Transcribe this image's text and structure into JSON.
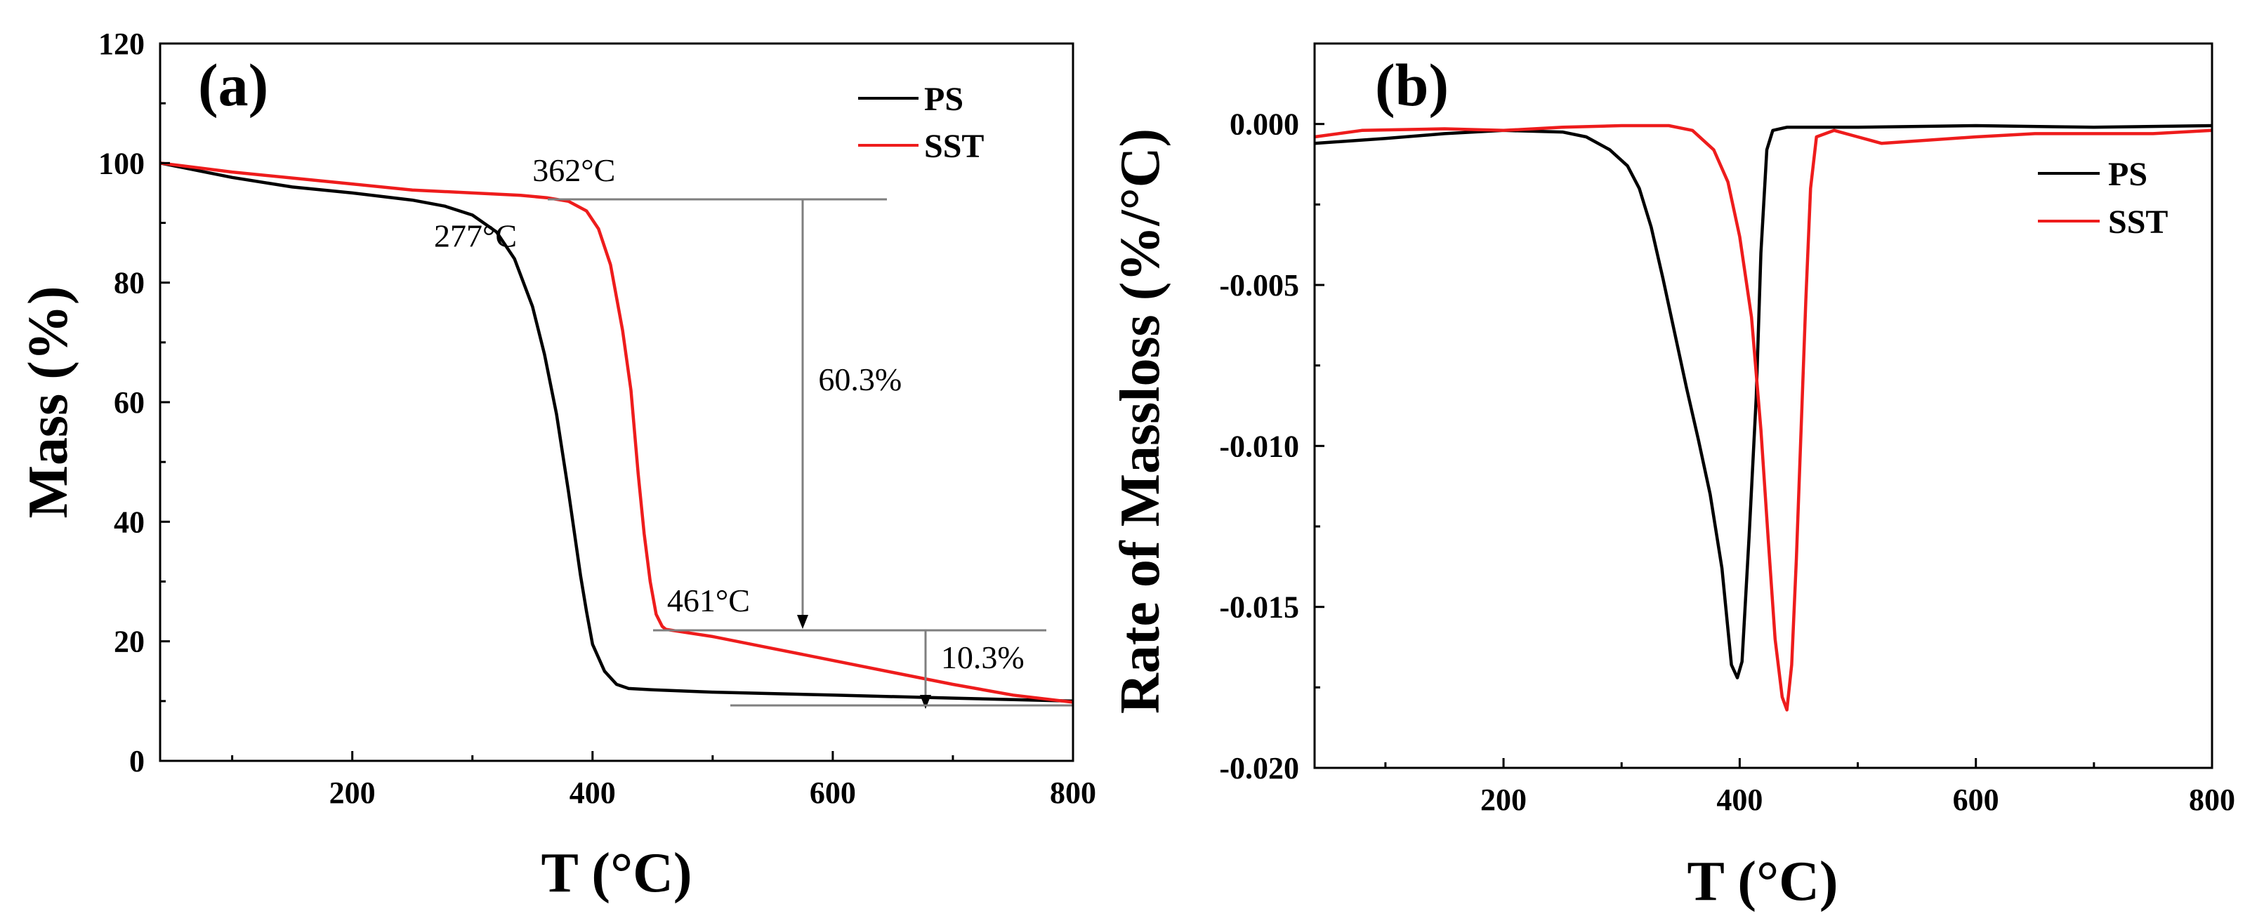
{
  "colors": {
    "PS": "#000000",
    "SST": "#ee1c1c",
    "annotation": "#7f7f7f"
  },
  "chart_data": [
    {
      "type": "line",
      "panel_label": "(a)",
      "xlabel": "T (°C)",
      "ylabel": "Mass (%)",
      "xlim": [
        40,
        800
      ],
      "ylim": [
        0,
        120
      ],
      "xticks": [
        200,
        400,
        600,
        800
      ],
      "yticks": [
        0,
        20,
        40,
        60,
        80,
        100,
        120
      ],
      "legend_position": "top-right",
      "series": [
        {
          "name": "PS",
          "color": "#000000",
          "points": [
            [
              40,
              100
            ],
            [
              100,
              97.6
            ],
            [
              150,
              96
            ],
            [
              200,
              95
            ],
            [
              250,
              93.8
            ],
            [
              277,
              92.8
            ],
            [
              300,
              91.3
            ],
            [
              320,
              88.5
            ],
            [
              335,
              84
            ],
            [
              350,
              76
            ],
            [
              360,
              68
            ],
            [
              370,
              58
            ],
            [
              380,
              45
            ],
            [
              390,
              31
            ],
            [
              395,
              25
            ],
            [
              400,
              19.5
            ],
            [
              410,
              15
            ],
            [
              420,
              12.8
            ],
            [
              430,
              12.1
            ],
            [
              450,
              11.9
            ],
            [
              500,
              11.5
            ],
            [
              600,
              11
            ],
            [
              700,
              10.5
            ],
            [
              800,
              10
            ]
          ]
        },
        {
          "name": "SST",
          "color": "#ee1c1c",
          "points": [
            [
              40,
              100
            ],
            [
              100,
              98.5
            ],
            [
              150,
              97.5
            ],
            [
              200,
              96.5
            ],
            [
              250,
              95.5
            ],
            [
              300,
              95
            ],
            [
              340,
              94.6
            ],
            [
              362,
              94.2
            ],
            [
              380,
              93.6
            ],
            [
              395,
              92
            ],
            [
              405,
              89
            ],
            [
              415,
              83
            ],
            [
              425,
              72
            ],
            [
              432,
              62
            ],
            [
              438,
              48
            ],
            [
              443,
              38
            ],
            [
              448,
              30
            ],
            [
              453,
              24.5
            ],
            [
              458,
              22.5
            ],
            [
              461,
              22
            ],
            [
              480,
              21.4
            ],
            [
              500,
              20.8
            ],
            [
              550,
              18.8
            ],
            [
              600,
              16.8
            ],
            [
              650,
              14.8
            ],
            [
              700,
              12.8
            ],
            [
              750,
              11
            ],
            [
              800,
              9.8
            ]
          ]
        }
      ],
      "annotations": [
        {
          "text": "362°C",
          "x": 350,
          "y": 97
        },
        {
          "text": "277°C",
          "x": 268,
          "y": 86
        },
        {
          "text": "461°C",
          "x": 462,
          "y": 25
        },
        {
          "text": "60.3%",
          "x": 588,
          "y": 62
        },
        {
          "text": "10.3%",
          "x": 690,
          "y": 15.5
        }
      ]
    },
    {
      "type": "line",
      "panel_label": "(b)",
      "xlabel": "T (°C)",
      "ylabel": "Rate of Massloss (%/°C)",
      "xlim": [
        40,
        800
      ],
      "ylim": [
        -0.02,
        0.0025
      ],
      "xticks": [
        200,
        400,
        600,
        800
      ],
      "yticks": [
        0.0,
        -0.005,
        -0.01,
        -0.015,
        -0.02
      ],
      "ytick_labels": [
        "0.000",
        "-0.005",
        "-0.010",
        "-0.015",
        "-0.020"
      ],
      "legend_position": "top-right",
      "series": [
        {
          "name": "PS",
          "color": "#000000",
          "points": [
            [
              40,
              -0.0006
            ],
            [
              100,
              -0.00045
            ],
            [
              150,
              -0.0003
            ],
            [
              200,
              -0.0002
            ],
            [
              250,
              -0.00025
            ],
            [
              270,
              -0.0004
            ],
            [
              290,
              -0.0008
            ],
            [
              305,
              -0.0013
            ],
            [
              315,
              -0.002
            ],
            [
              325,
              -0.0032
            ],
            [
              335,
              -0.0048
            ],
            [
              345,
              -0.0065
            ],
            [
              355,
              -0.0082
            ],
            [
              365,
              -0.0098
            ],
            [
              375,
              -0.0115
            ],
            [
              385,
              -0.0138
            ],
            [
              393,
              -0.0168
            ],
            [
              398,
              -0.0172
            ],
            [
              402,
              -0.0167
            ],
            [
              408,
              -0.0128
            ],
            [
              414,
              -0.0085
            ],
            [
              418,
              -0.004
            ],
            [
              423,
              -0.0008
            ],
            [
              428,
              -0.0002
            ],
            [
              440,
              -0.0001
            ],
            [
              500,
              -0.0001
            ],
            [
              600,
              -5e-05
            ],
            [
              700,
              -0.0001
            ],
            [
              800,
              -5e-05
            ]
          ]
        },
        {
          "name": "SST",
          "color": "#ee1c1c",
          "points": [
            [
              40,
              -0.0004
            ],
            [
              80,
              -0.0002
            ],
            [
              150,
              -0.00015
            ],
            [
              200,
              -0.0002
            ],
            [
              250,
              -0.0001
            ],
            [
              300,
              -5e-05
            ],
            [
              340,
              -5e-05
            ],
            [
              360,
              -0.0002
            ],
            [
              378,
              -0.0008
            ],
            [
              390,
              -0.0018
            ],
            [
              400,
              -0.0035
            ],
            [
              410,
              -0.006
            ],
            [
              418,
              -0.0095
            ],
            [
              424,
              -0.0128
            ],
            [
              430,
              -0.016
            ],
            [
              436,
              -0.0178
            ],
            [
              440,
              -0.0182
            ],
            [
              444,
              -0.0168
            ],
            [
              448,
              -0.0135
            ],
            [
              452,
              -0.0095
            ],
            [
              456,
              -0.0055
            ],
            [
              460,
              -0.002
            ],
            [
              465,
              -0.0004
            ],
            [
              480,
              -0.0002
            ],
            [
              500,
              -0.0004
            ],
            [
              520,
              -0.0006
            ],
            [
              560,
              -0.0005
            ],
            [
              600,
              -0.0004
            ],
            [
              650,
              -0.0003
            ],
            [
              700,
              -0.0003
            ],
            [
              750,
              -0.0003
            ],
            [
              800,
              -0.0002
            ]
          ]
        }
      ]
    }
  ]
}
